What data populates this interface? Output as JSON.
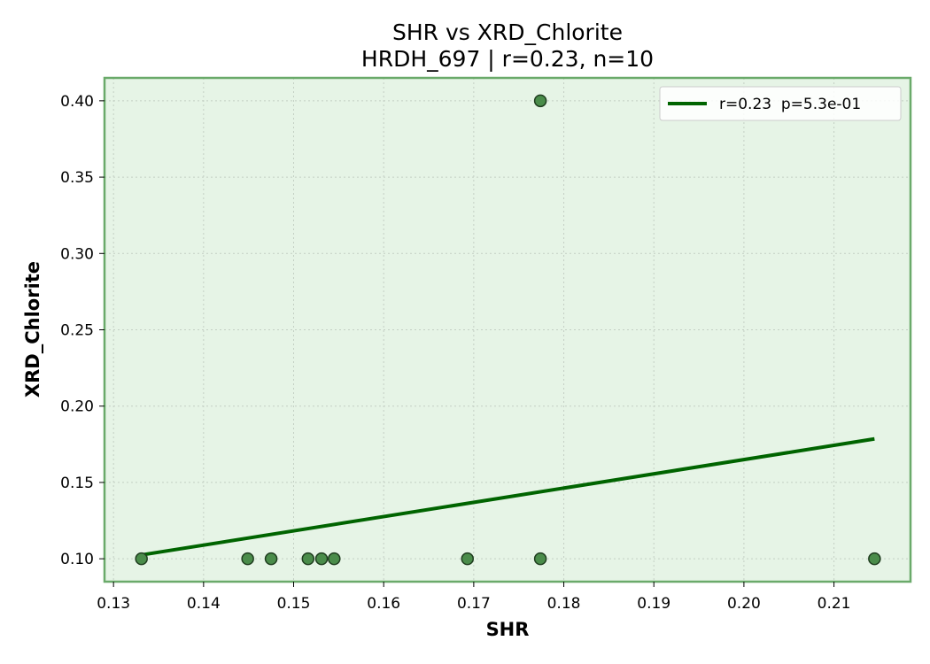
{
  "chart_data": {
    "type": "scatter",
    "title": "SHR vs XRD_Chlorite",
    "subtitle": "HRDH_697 | r=0.23, n=10",
    "xlabel": "SHR",
    "ylabel": "XRD_Chlorite",
    "xlim": [
      0.129,
      0.2185
    ],
    "ylim": [
      0.085,
      0.415
    ],
    "x_ticks": [
      "0.13",
      "0.14",
      "0.15",
      "0.16",
      "0.17",
      "0.18",
      "0.19",
      "0.20",
      "0.21"
    ],
    "y_ticks": [
      "0.10",
      "0.15",
      "0.20",
      "0.25",
      "0.30",
      "0.35",
      "0.40"
    ],
    "grid": true,
    "legend_position": "top-right",
    "series": [
      {
        "kind": "scatter",
        "points": [
          {
            "x": 0.1331,
            "y": 0.1
          },
          {
            "x": 0.1449,
            "y": 0.1
          },
          {
            "x": 0.1475,
            "y": 0.1
          },
          {
            "x": 0.1516,
            "y": 0.1
          },
          {
            "x": 0.1531,
            "y": 0.1
          },
          {
            "x": 0.1545,
            "y": 0.1
          },
          {
            "x": 0.1693,
            "y": 0.1
          },
          {
            "x": 0.1774,
            "y": 0.1
          },
          {
            "x": 0.1774,
            "y": 0.4
          },
          {
            "x": 0.2145,
            "y": 0.1
          }
        ]
      },
      {
        "kind": "line",
        "name": "r=0.23  p=5.3e-01",
        "points": [
          {
            "x": 0.1331,
            "y": 0.1025
          },
          {
            "x": 0.2145,
            "y": 0.1785
          }
        ]
      }
    ],
    "colors": {
      "plot_background": "#e6f4e6",
      "frame": "#6aaa6a",
      "marker_fill": "#4a8c4a",
      "marker_edge": "#1f3d1f",
      "fit_line": "#006400",
      "grid": "#c4cfc4"
    }
  }
}
